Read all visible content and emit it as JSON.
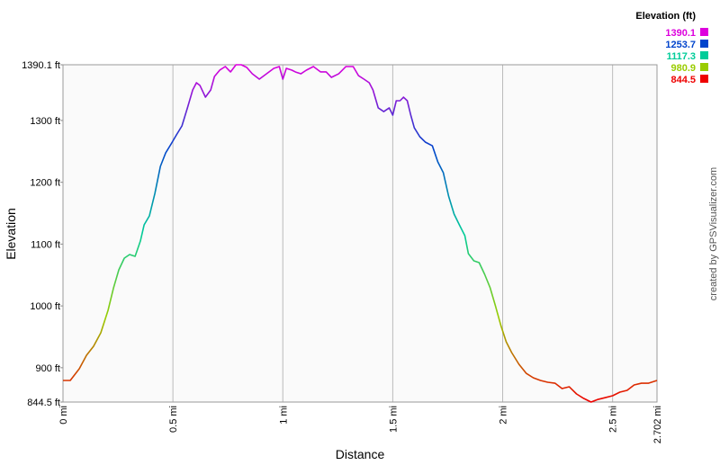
{
  "chart_data": {
    "type": "line",
    "x_label": "Distance",
    "y_label": "Elevation",
    "legend_title": "Elevation (ft)",
    "credit": "created by GPSVisualizer.com",
    "color_scale": [
      {
        "value": 1390.1,
        "color": "#dd00dd"
      },
      {
        "value": 1253.7,
        "color": "#0044cc"
      },
      {
        "value": 1117.3,
        "color": "#00cc99"
      },
      {
        "value": 980.9,
        "color": "#99cc00"
      },
      {
        "value": 844.5,
        "color": "#ee0000"
      }
    ],
    "x": [
      0,
      0.033,
      0.074,
      0.107,
      0.139,
      0.172,
      0.205,
      0.23,
      0.254,
      0.279,
      0.303,
      0.328,
      0.352,
      0.369,
      0.393,
      0.418,
      0.443,
      0.467,
      0.492,
      0.516,
      0.541,
      0.566,
      0.59,
      0.607,
      0.623,
      0.648,
      0.672,
      0.689,
      0.713,
      0.738,
      0.762,
      0.787,
      0.811,
      0.836,
      0.861,
      0.893,
      0.926,
      0.959,
      0.984,
      1.0,
      1.016,
      1.041,
      1.057,
      1.082,
      1.107,
      1.139,
      1.172,
      1.197,
      1.221,
      1.254,
      1.287,
      1.32,
      1.344,
      1.369,
      1.393,
      1.41,
      1.434,
      1.459,
      1.484,
      1.5,
      1.516,
      1.533,
      1.549,
      1.566,
      1.582,
      1.598,
      1.623,
      1.648,
      1.68,
      1.705,
      1.73,
      1.754,
      1.779,
      1.803,
      1.828,
      1.844,
      1.869,
      1.893,
      1.918,
      1.943,
      1.967,
      1.992,
      2.016,
      2.041,
      2.074,
      2.107,
      2.139,
      2.172,
      2.205,
      2.238,
      2.27,
      2.303,
      2.336,
      2.369,
      2.402,
      2.434,
      2.467,
      2.5,
      2.533,
      2.566,
      2.598,
      2.631,
      2.664,
      2.702
    ],
    "y": [
      879.4,
      879.4,
      898.3,
      920.1,
      934.7,
      956.5,
      992.9,
      1029.3,
      1058.4,
      1077.3,
      1083.1,
      1080.2,
      1104.9,
      1131.1,
      1145.7,
      1182.0,
      1225.7,
      1247.5,
      1262.1,
      1276.6,
      1291.2,
      1320.3,
      1349.4,
      1361.0,
      1356.6,
      1337.7,
      1349.4,
      1371.2,
      1381.4,
      1387.2,
      1378.5,
      1390.1,
      1390.1,
      1385.7,
      1375.5,
      1366.8,
      1375.5,
      1384.3,
      1387.2,
      1366.8,
      1384.3,
      1381.4,
      1378.5,
      1375.5,
      1381.4,
      1387.2,
      1378.5,
      1378.5,
      1369.7,
      1375.5,
      1387.2,
      1387.2,
      1372.6,
      1366.8,
      1361.0,
      1349.4,
      1320.3,
      1314.4,
      1320.3,
      1308.6,
      1331.9,
      1331.9,
      1337.7,
      1331.9,
      1308.6,
      1288.2,
      1273.7,
      1265.0,
      1259.1,
      1233.0,
      1215.5,
      1177.7,
      1148.6,
      1131.1,
      1113.6,
      1084.5,
      1072.9,
      1070.0,
      1051.1,
      1029.3,
      1000.2,
      968.1,
      942.0,
      924.5,
      905.6,
      891.0,
      883.8,
      879.4,
      876.5,
      875.0,
      866.3,
      869.2,
      857.6,
      850.3,
      844.5,
      848.8,
      851.7,
      854.7,
      860.5,
      863.4,
      872.1,
      875.0,
      875.0,
      879.4
    ],
    "xlim": [
      0,
      2.702
    ],
    "ylim": [
      844.5,
      1390.1
    ],
    "xticks": [
      {
        "value": 0,
        "label": "0 mi"
      },
      {
        "value": 0.5,
        "label": "0.5 mi"
      },
      {
        "value": 1,
        "label": "1 mi"
      },
      {
        "value": 1.5,
        "label": "1.5 mi"
      },
      {
        "value": 2,
        "label": "2 mi"
      },
      {
        "value": 2.5,
        "label": "2.5 mi"
      },
      {
        "value": 2.702,
        "label": "2.702 mi"
      }
    ],
    "yticks": [
      {
        "value": 844.5,
        "label": "844.5 ft"
      },
      {
        "value": 900,
        "label": "900 ft"
      },
      {
        "value": 1000,
        "label": "1000 ft"
      },
      {
        "value": 1100,
        "label": "1100 ft"
      },
      {
        "value": 1200,
        "label": "1200 ft"
      },
      {
        "value": 1300,
        "label": "1300 ft"
      },
      {
        "value": 1390.1,
        "label": "1390.1 ft"
      }
    ],
    "grid": "x"
  }
}
